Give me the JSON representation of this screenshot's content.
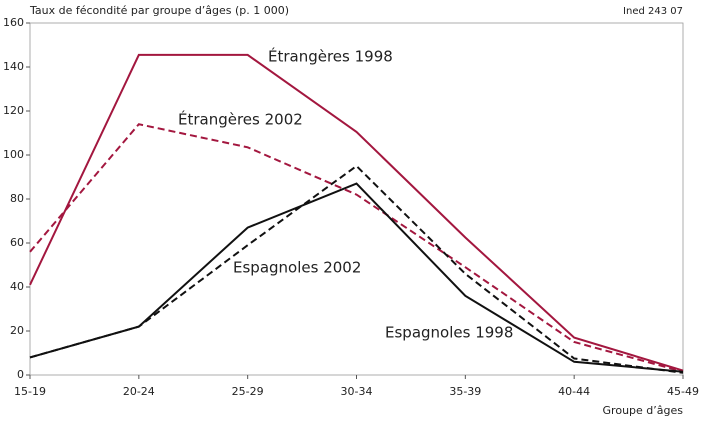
{
  "chart_data": {
    "type": "line",
    "y_axis_label": "Taux de fécondité par groupe d’âges (p. 1 000)",
    "source": "Ined 243 07",
    "x_axis_label": "Groupe d’âges",
    "categories": [
      "15-19",
      "20-24",
      "25-29",
      "30-34",
      "35-39",
      "40-44",
      "45-49"
    ],
    "series": [
      {
        "name": "Étrangères 1998",
        "color": "#a3173f",
        "dashed": false,
        "values": [
          41,
          145.5,
          145.5,
          110.5,
          62.5,
          17,
          2
        ]
      },
      {
        "name": "Étrangères 2002",
        "color": "#a3173f",
        "dashed": true,
        "values": [
          56,
          114,
          103.5,
          82,
          49,
          15,
          1.5
        ]
      },
      {
        "name": "Espagnoles 2002",
        "color": "#111111",
        "dashed": true,
        "values": [
          8,
          22,
          59,
          95,
          46,
          7.5,
          1
        ]
      },
      {
        "name": "Espagnoles 1998",
        "color": "#111111",
        "dashed": false,
        "values": [
          8,
          22,
          67,
          87,
          36,
          6,
          1.5
        ]
      }
    ],
    "ylim": [
      0,
      160
    ],
    "yticks": [
      0,
      20,
      40,
      60,
      80,
      100,
      120,
      140,
      160
    ],
    "grid": false
  }
}
